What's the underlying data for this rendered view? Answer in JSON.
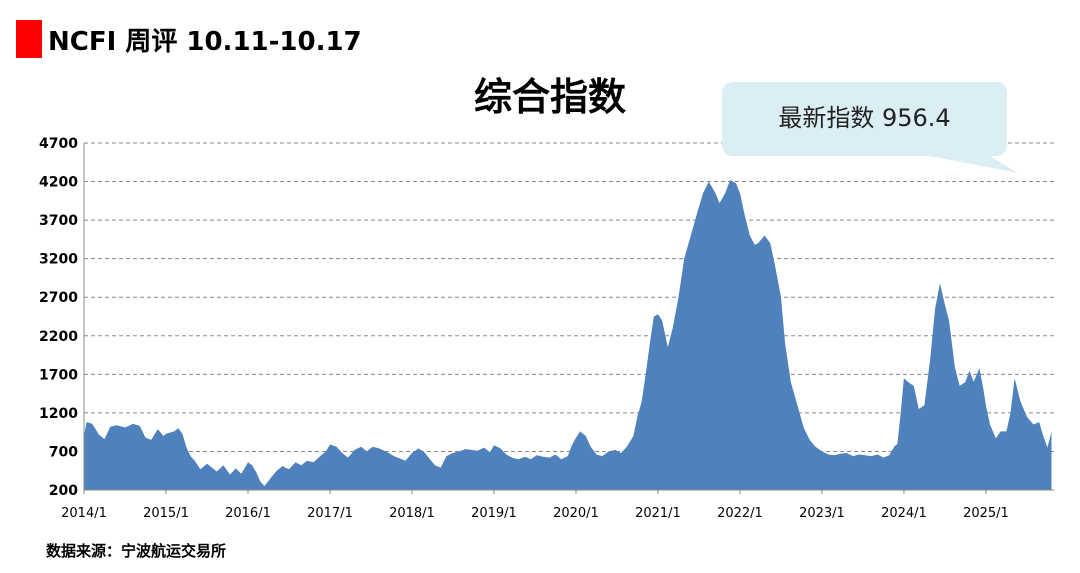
{
  "header": {
    "title": "NCFI 周评 10.11-10.17"
  },
  "source": "数据来源：宁波航运交易所",
  "callout": "最新指数 956.4",
  "colors": {
    "accent": "#ff0000",
    "area": "#4f81bd",
    "callout_bg": "#dbeef4"
  },
  "chart_data": {
    "type": "area",
    "title": "综合指数",
    "xlabel": "",
    "ylabel": "",
    "ylim": [
      200,
      4700
    ],
    "yticks": [
      200,
      700,
      1200,
      1700,
      2200,
      2700,
      3200,
      3700,
      4200,
      4700
    ],
    "xticks": [
      "2014/1",
      "2015/1",
      "2016/1",
      "2017/1",
      "2018/1",
      "2019/1",
      "2020/1",
      "2021/1",
      "2022/1",
      "2023/1",
      "2024/1",
      "2025/1"
    ],
    "grid": "horizontal dashed",
    "series": [
      {
        "values": [
          [
            2014.0,
            900
          ],
          [
            2014.03,
            1080
          ],
          [
            2014.1,
            1060
          ],
          [
            2014.18,
            920
          ],
          [
            2014.25,
            860
          ],
          [
            2014.32,
            1020
          ],
          [
            2014.4,
            1040
          ],
          [
            2014.5,
            1010
          ],
          [
            2014.6,
            1060
          ],
          [
            2014.68,
            1030
          ],
          [
            2014.75,
            880
          ],
          [
            2014.82,
            850
          ],
          [
            2014.9,
            990
          ],
          [
            2014.97,
            900
          ],
          [
            2015.0,
            930
          ],
          [
            2015.1,
            960
          ],
          [
            2015.15,
            1000
          ],
          [
            2015.2,
            930
          ],
          [
            2015.25,
            750
          ],
          [
            2015.3,
            640
          ],
          [
            2015.35,
            580
          ],
          [
            2015.42,
            470
          ],
          [
            2015.5,
            540
          ],
          [
            2015.55,
            500
          ],
          [
            2015.62,
            440
          ],
          [
            2015.7,
            520
          ],
          [
            2015.78,
            400
          ],
          [
            2015.85,
            480
          ],
          [
            2015.92,
            410
          ],
          [
            2016.0,
            560
          ],
          [
            2016.05,
            520
          ],
          [
            2016.1,
            430
          ],
          [
            2016.15,
            310
          ],
          [
            2016.2,
            250
          ],
          [
            2016.28,
            360
          ],
          [
            2016.35,
            450
          ],
          [
            2016.42,
            510
          ],
          [
            2016.5,
            470
          ],
          [
            2016.58,
            560
          ],
          [
            2016.65,
            520
          ],
          [
            2016.72,
            580
          ],
          [
            2016.8,
            560
          ],
          [
            2016.88,
            640
          ],
          [
            2016.95,
            700
          ],
          [
            2017.0,
            790
          ],
          [
            2017.08,
            760
          ],
          [
            2017.15,
            680
          ],
          [
            2017.22,
            620
          ],
          [
            2017.3,
            720
          ],
          [
            2017.38,
            760
          ],
          [
            2017.45,
            700
          ],
          [
            2017.52,
            760
          ],
          [
            2017.6,
            740
          ],
          [
            2017.7,
            690
          ],
          [
            2017.78,
            640
          ],
          [
            2017.85,
            610
          ],
          [
            2017.92,
            580
          ],
          [
            2018.0,
            680
          ],
          [
            2018.08,
            740
          ],
          [
            2018.15,
            690
          ],
          [
            2018.22,
            600
          ],
          [
            2018.28,
            520
          ],
          [
            2018.35,
            490
          ],
          [
            2018.42,
            640
          ],
          [
            2018.5,
            680
          ],
          [
            2018.58,
            700
          ],
          [
            2018.65,
            730
          ],
          [
            2018.72,
            720
          ],
          [
            2018.8,
            710
          ],
          [
            2018.88,
            750
          ],
          [
            2018.95,
            690
          ],
          [
            2019.0,
            780
          ],
          [
            2019.08,
            740
          ],
          [
            2019.15,
            660
          ],
          [
            2019.22,
            620
          ],
          [
            2019.3,
            600
          ],
          [
            2019.38,
            630
          ],
          [
            2019.45,
            600
          ],
          [
            2019.52,
            650
          ],
          [
            2019.6,
            630
          ],
          [
            2019.68,
            620
          ],
          [
            2019.75,
            660
          ],
          [
            2019.82,
            600
          ],
          [
            2019.9,
            640
          ],
          [
            2019.95,
            780
          ],
          [
            2020.0,
            880
          ],
          [
            2020.05,
            960
          ],
          [
            2020.12,
            900
          ],
          [
            2020.18,
            760
          ],
          [
            2020.25,
            660
          ],
          [
            2020.32,
            640
          ],
          [
            2020.4,
            700
          ],
          [
            2020.48,
            720
          ],
          [
            2020.55,
            680
          ],
          [
            2020.62,
            760
          ],
          [
            2020.7,
            900
          ],
          [
            2020.75,
            1160
          ],
          [
            2020.8,
            1340
          ],
          [
            2020.85,
            1700
          ],
          [
            2020.9,
            2100
          ],
          [
            2020.95,
            2450
          ],
          [
            2021.0,
            2480
          ],
          [
            2021.05,
            2400
          ],
          [
            2021.12,
            2050
          ],
          [
            2021.18,
            2300
          ],
          [
            2021.25,
            2700
          ],
          [
            2021.32,
            3200
          ],
          [
            2021.4,
            3500
          ],
          [
            2021.48,
            3800
          ],
          [
            2021.55,
            4050
          ],
          [
            2021.62,
            4200
          ],
          [
            2021.7,
            4050
          ],
          [
            2021.75,
            3920
          ],
          [
            2021.82,
            4050
          ],
          [
            2021.88,
            4220
          ],
          [
            2021.95,
            4180
          ],
          [
            2022.0,
            4050
          ],
          [
            2022.05,
            3800
          ],
          [
            2022.12,
            3500
          ],
          [
            2022.18,
            3380
          ],
          [
            2022.22,
            3400
          ],
          [
            2022.3,
            3500
          ],
          [
            2022.37,
            3400
          ],
          [
            2022.43,
            3100
          ],
          [
            2022.5,
            2700
          ],
          [
            2022.55,
            2100
          ],
          [
            2022.62,
            1600
          ],
          [
            2022.7,
            1300
          ],
          [
            2022.78,
            1000
          ],
          [
            2022.85,
            850
          ],
          [
            2022.92,
            760
          ],
          [
            2023.0,
            700
          ],
          [
            2023.08,
            660
          ],
          [
            2023.15,
            650
          ],
          [
            2023.22,
            670
          ],
          [
            2023.3,
            680
          ],
          [
            2023.38,
            640
          ],
          [
            2023.45,
            660
          ],
          [
            2023.52,
            650
          ],
          [
            2023.6,
            640
          ],
          [
            2023.68,
            660
          ],
          [
            2023.75,
            620
          ],
          [
            2023.82,
            650
          ],
          [
            2023.88,
            760
          ],
          [
            2023.92,
            800
          ],
          [
            2023.96,
            1200
          ],
          [
            2024.0,
            1650
          ],
          [
            2024.05,
            1600
          ],
          [
            2024.12,
            1550
          ],
          [
            2024.18,
            1250
          ],
          [
            2024.25,
            1300
          ],
          [
            2024.32,
            1900
          ],
          [
            2024.38,
            2550
          ],
          [
            2024.44,
            2880
          ],
          [
            2024.5,
            2600
          ],
          [
            2024.55,
            2400
          ],
          [
            2024.62,
            1800
          ],
          [
            2024.68,
            1550
          ],
          [
            2024.75,
            1600
          ],
          [
            2024.8,
            1750
          ],
          [
            2024.85,
            1600
          ],
          [
            2024.92,
            1780
          ],
          [
            2024.97,
            1500
          ],
          [
            2025.0,
            1300
          ],
          [
            2025.05,
            1050
          ],
          [
            2025.12,
            870
          ],
          [
            2025.18,
            960
          ],
          [
            2025.25,
            960
          ],
          [
            2025.3,
            1200
          ],
          [
            2025.35,
            1650
          ],
          [
            2025.42,
            1350
          ],
          [
            2025.5,
            1150
          ],
          [
            2025.58,
            1050
          ],
          [
            2025.65,
            1080
          ],
          [
            2025.7,
            900
          ],
          [
            2025.75,
            750
          ],
          [
            2025.8,
            956.4
          ]
        ]
      }
    ]
  }
}
